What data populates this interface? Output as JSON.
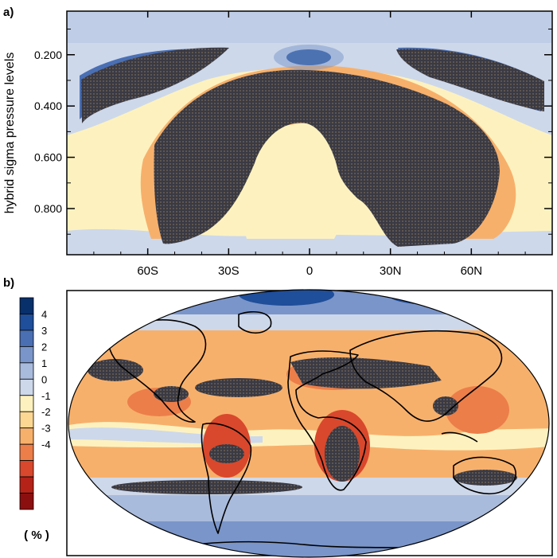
{
  "panel_a": {
    "label": "a)",
    "ylabel": "hybrid sigma pressure levels"
  },
  "panel_b": {
    "label": "b)"
  },
  "colorbar": {
    "unit": "( % )",
    "ticks": [
      "4",
      "3",
      "2",
      "1",
      "0",
      "-1",
      "-2",
      "-3",
      "-4"
    ],
    "colors": [
      "#08306b",
      "#1f4e9a",
      "#4a6fb3",
      "#7a95c9",
      "#a9bbdc",
      "#cdd8ea",
      "#fdf2bf",
      "#fbd793",
      "#f7b06b",
      "#ec7e4a",
      "#d9482c",
      "#b52218",
      "#8c0f0f"
    ]
  },
  "chart_data": [
    {
      "type": "heatmap",
      "panel": "a)",
      "ylabel": "hybrid sigma pressure levels",
      "xlabel": "",
      "x_ticks": [
        "60S",
        "30S",
        "0",
        "30N",
        "60N"
      ],
      "x_tick_values": [
        -60,
        -30,
        0,
        30,
        60
      ],
      "xlim": [
        -90,
        90
      ],
      "y_ticks": [
        "0.200",
        "0.400",
        "0.600",
        "0.800"
      ],
      "y_tick_values": [
        0.2,
        0.4,
        0.6,
        0.8
      ],
      "ylim": [
        0.03,
        0.98
      ],
      "y_reversed": true,
      "color_range": [
        -4,
        4
      ],
      "stippling": "significant regions",
      "grid": false
    },
    {
      "type": "heatmap",
      "panel": "b)",
      "projection": "Robinson",
      "coastlines": true,
      "color_range": [
        -4,
        4
      ],
      "stippling": "significant regions",
      "colorbar_unit": "( % )",
      "colorbar_ticks": [
        4,
        3,
        2,
        1,
        0,
        -1,
        -2,
        -3,
        -4
      ]
    }
  ]
}
